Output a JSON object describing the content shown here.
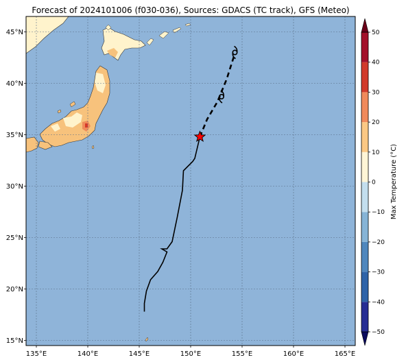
{
  "title": "Forecast of 2024101006 (f030-036), Sources: GDACS (TC track), GFS (Meteo)",
  "map": {
    "lon_range": [
      134,
      166
    ],
    "lat_range": [
      14.5,
      46.5
    ],
    "lon_ticks": [
      {
        "value": 135,
        "label": "135°E"
      },
      {
        "value": 140,
        "label": "140°E"
      },
      {
        "value": 145,
        "label": "145°E"
      },
      {
        "value": 150,
        "label": "150°E"
      },
      {
        "value": 155,
        "label": "155°E"
      },
      {
        "value": 160,
        "label": "160°E"
      },
      {
        "value": 165,
        "label": "165°E"
      }
    ],
    "lat_ticks": [
      {
        "value": 15,
        "label": "15°N"
      },
      {
        "value": 20,
        "label": "20°N"
      },
      {
        "value": 25,
        "label": "25°N"
      },
      {
        "value": 30,
        "label": "30°N"
      },
      {
        "value": 35,
        "label": "35°N"
      },
      {
        "value": 40,
        "label": "40°N"
      },
      {
        "value": 45,
        "label": "45°N"
      }
    ],
    "gridlines": true,
    "ocean_color": "#8fb4d9",
    "colors": {
      "t_0_10": "#fff3cc",
      "t_10_20": "#f7c27c",
      "t_20_30": "#ef8b5a",
      "t_30_40": "#d63a2a"
    }
  },
  "track": {
    "observed": [
      [
        145.5,
        17.8
      ],
      [
        145.5,
        18.6
      ],
      [
        145.7,
        19.8
      ],
      [
        146.1,
        20.9
      ],
      [
        146.8,
        21.7
      ],
      [
        147.3,
        22.6
      ],
      [
        147.7,
        23.6
      ],
      [
        147.2,
        23.9
      ],
      [
        147.7,
        23.9
      ],
      [
        148.2,
        24.6
      ],
      [
        148.7,
        27.0
      ],
      [
        149.2,
        29.6
      ],
      [
        149.3,
        31.5
      ],
      [
        150.2,
        32.4
      ],
      [
        150.4,
        32.7
      ],
      [
        150.9,
        34.8
      ]
    ],
    "forecast": [
      [
        150.9,
        34.8
      ],
      [
        151.6,
        36.5
      ],
      [
        152.6,
        38.2
      ],
      [
        153.5,
        40.4
      ],
      [
        154.2,
        42.6
      ]
    ],
    "current_position": [
      150.9,
      34.8
    ],
    "storm_markers": [
      [
        153.0,
        38.7
      ],
      [
        154.3,
        43.0
      ]
    ],
    "observed_color": "#000000",
    "forecast_color": "#000000",
    "current_marker_color": "#ff0000"
  },
  "colorbar": {
    "label": "Max Temperature (°C)",
    "ticks": [
      "50",
      "40",
      "30",
      "20",
      "10",
      "0",
      "−10",
      "−20",
      "−30",
      "−40",
      "−50"
    ],
    "bins": [
      {
        "range": [
          -60,
          -50
        ],
        "color": "#0b0b5e"
      },
      {
        "range": [
          -50,
          -40
        ],
        "color": "#262d94"
      },
      {
        "range": [
          -40,
          -30
        ],
        "color": "#2e63a8"
      },
      {
        "range": [
          -30,
          -20
        ],
        "color": "#4f87bd"
      },
      {
        "range": [
          -20,
          -10
        ],
        "color": "#86b4d6"
      },
      {
        "range": [
          -10,
          0
        ],
        "color": "#c3deee"
      },
      {
        "range": [
          0,
          10
        ],
        "color": "#fff5d6"
      },
      {
        "range": [
          10,
          20
        ],
        "color": "#fbc884"
      },
      {
        "range": [
          20,
          30
        ],
        "color": "#f08a5b"
      },
      {
        "range": [
          30,
          40
        ],
        "color": "#d13a2b"
      },
      {
        "range": [
          40,
          50
        ],
        "color": "#a3102a"
      },
      {
        "range": [
          50,
          60
        ],
        "color": "#6b0019"
      }
    ]
  }
}
